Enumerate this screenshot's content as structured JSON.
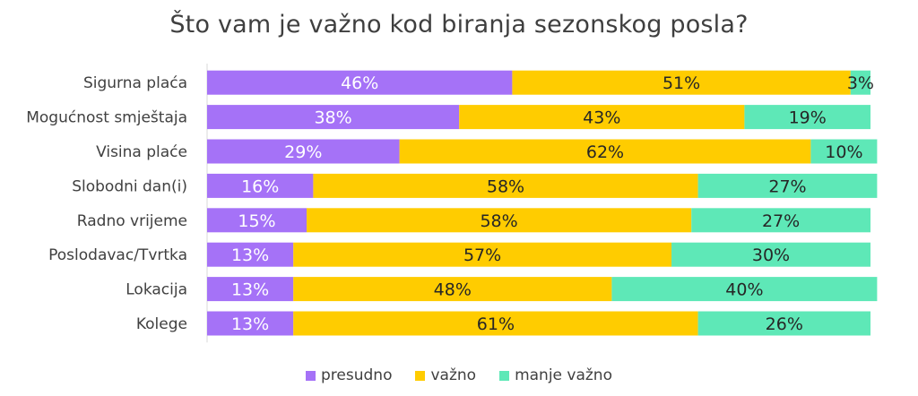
{
  "chart_data": {
    "type": "bar",
    "orientation": "horizontal",
    "stacked": true,
    "title": "Što vam je važno kod biranja sezonskog posla?",
    "categories": [
      "Sigurna plaća",
      "Mogućnost smještaja",
      "Visina plaće",
      "Slobodni dan(i)",
      "Radno vrijeme",
      "Poslodavac/Tvrtka",
      "Lokacija",
      "Kolege"
    ],
    "series": [
      {
        "name": "presudno",
        "color": "#a572f7",
        "values": [
          46,
          38,
          29,
          16,
          15,
          13,
          13,
          13
        ]
      },
      {
        "name": "važno",
        "color": "#ffcc00",
        "values": [
          51,
          43,
          62,
          58,
          58,
          57,
          48,
          61
        ]
      },
      {
        "name": "manje važno",
        "color": "#5ee8b7",
        "values": [
          3,
          19,
          10,
          27,
          27,
          30,
          40,
          26
        ]
      }
    ],
    "value_suffix": "%",
    "grid": false,
    "legend_position": "bottom"
  }
}
